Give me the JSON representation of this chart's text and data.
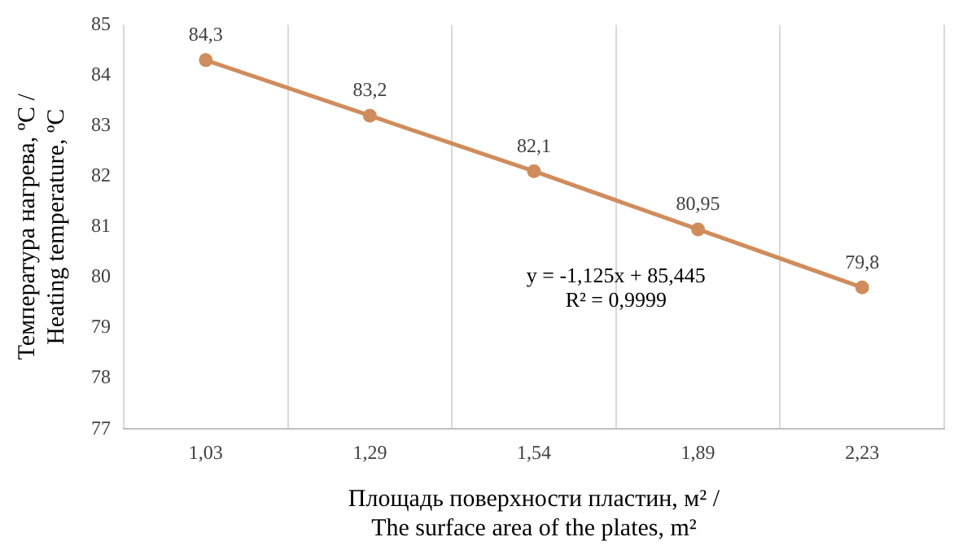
{
  "chart_data": {
    "type": "line",
    "categories": [
      "1,03",
      "1,29",
      "1,54",
      "1,89",
      "2,23"
    ],
    "series": [
      {
        "color": "#d08c5c",
        "values": [
          84.3,
          83.2,
          82.1,
          80.95,
          79.8
        ],
        "value_labels": [
          "84,3",
          "83,2",
          "82,1",
          "80,95",
          "79,8"
        ]
      }
    ],
    "ylim": [
      77,
      85
    ],
    "yticks": [
      77,
      78,
      79,
      80,
      81,
      82,
      83,
      84,
      85
    ],
    "xlabel": "Площадь поверхности пластин, м² /\nThe surface area of the plates, m²",
    "ylabel": "Температура нагрева, ºC /\nHeating temperature, ºC",
    "annotations": [
      "y = -1,125x + 85,445",
      "R² = 0,9999"
    ],
    "grid": "x",
    "legend": false,
    "marker": "circle",
    "line_style": "solid"
  }
}
